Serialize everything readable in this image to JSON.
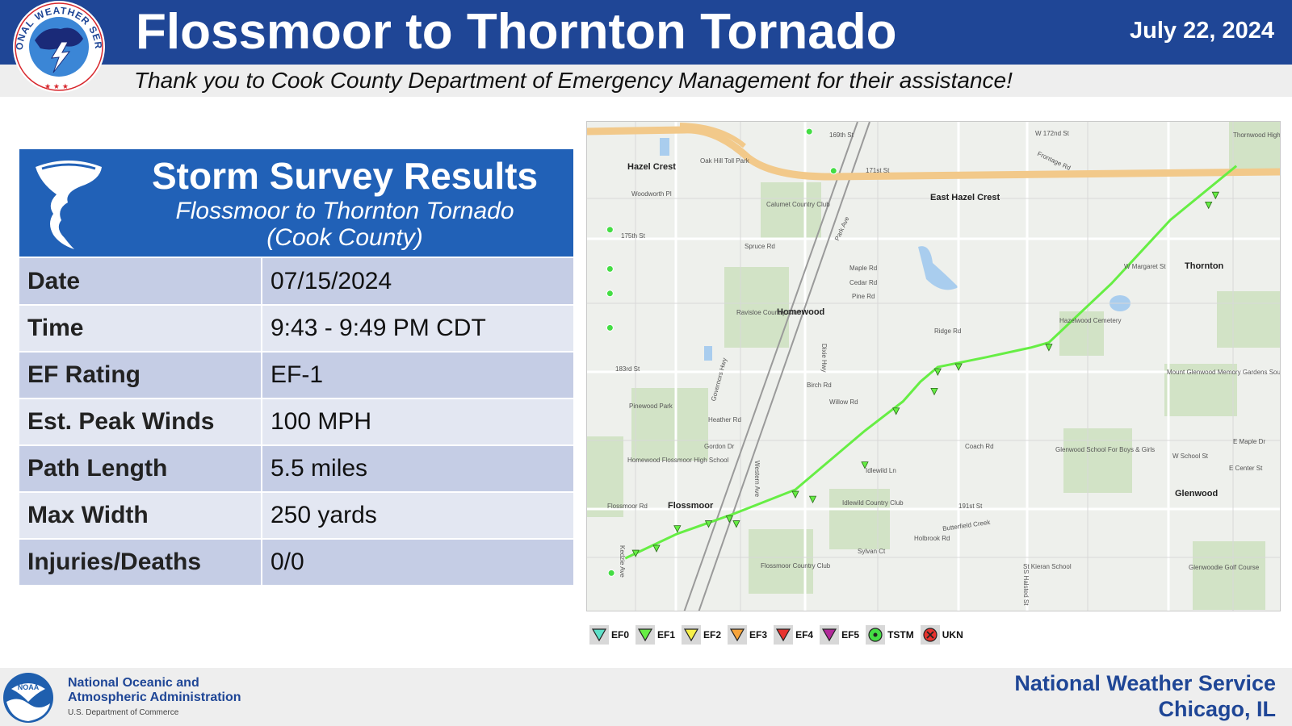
{
  "header": {
    "title": "Flossmoor to Thornton Tornado",
    "date": "July 22, 2024",
    "subtitle": "Thank you to Cook County Department of Emergency Management for their assistance!",
    "logo_text": "NATIONAL WEATHER SERVICE"
  },
  "survey": {
    "heading": "Storm Survey Results",
    "subheading_line1": "Flossmoor to Thornton Tornado",
    "subheading_line2": "(Cook County)",
    "rows": [
      {
        "label": "Date",
        "value": "07/15/2024"
      },
      {
        "label": "Time",
        "value": "9:43 - 9:49 PM CDT"
      },
      {
        "label": "EF Rating",
        "value": "EF-1"
      },
      {
        "label": "Est. Peak Winds",
        "value": "100 MPH"
      },
      {
        "label": "Path Length",
        "value": "5.5 miles"
      },
      {
        "label": "Max Width",
        "value": "250 yards"
      },
      {
        "label": "Injuries/Deaths",
        "value": "0/0"
      }
    ]
  },
  "map": {
    "places": [
      "Hazel Crest",
      "East Hazel Crest",
      "Homewood",
      "Thornton",
      "Flossmoor",
      "Glenwood"
    ],
    "streets": [
      "169th St",
      "171st St",
      "175th St",
      "183rd St",
      "W 172nd St",
      "Spruce Rd",
      "Maple Rd",
      "Cedar Rd",
      "Pine Rd",
      "Ridge Rd",
      "Birch Rd",
      "Willow Rd",
      "Heather Rd",
      "Gordon Dr",
      "Coach Rd",
      "Idlewild Ln",
      "Flossmoor Rd",
      "Holbrook Rd",
      "Sylvan Ct",
      "191st St",
      "W School St",
      "E Maple Dr",
      "E Center St",
      "W Margaret St",
      "Woodworth Pl",
      "S Halsted St",
      "Dixie Hwy",
      "Governors Hwy",
      "Kedzie Ave",
      "Western Ave",
      "Park Ave",
      "Frontage Rd"
    ],
    "landmarks": [
      "Calumet Country Club",
      "Ravisloe Country Club",
      "Idlewild Country Club",
      "Flossmoor Country Club",
      "Pinewood Park",
      "Homewood Flossmoor High School",
      "Hazelwood Cemetery",
      "Mount Glenwood Memory Gardens South",
      "Glenwood School For Boys & Girls",
      "St Kieran School",
      "Glenwoodie Golf Course",
      "Thornwood High School",
      "Oak Hill Toll Park",
      "Butterfield Creek"
    ],
    "track_color": "#66ee44",
    "track_points": [
      [
        0.055,
        0.89
      ],
      [
        0.13,
        0.84
      ],
      [
        0.21,
        0.8
      ],
      [
        0.3,
        0.75
      ],
      [
        0.4,
        0.63
      ],
      [
        0.455,
        0.57
      ],
      [
        0.48,
        0.53
      ],
      [
        0.505,
        0.5
      ],
      [
        0.575,
        0.48
      ],
      [
        0.64,
        0.46
      ],
      [
        0.665,
        0.45
      ],
      [
        0.755,
        0.33
      ],
      [
        0.84,
        0.2
      ],
      [
        0.935,
        0.09
      ]
    ],
    "marker_points": [
      [
        0.07,
        0.88
      ],
      [
        0.1,
        0.87
      ],
      [
        0.13,
        0.83
      ],
      [
        0.175,
        0.82
      ],
      [
        0.205,
        0.81
      ],
      [
        0.215,
        0.82
      ],
      [
        0.3,
        0.76
      ],
      [
        0.325,
        0.77
      ],
      [
        0.4,
        0.7
      ],
      [
        0.445,
        0.59
      ],
      [
        0.5,
        0.55
      ],
      [
        0.505,
        0.51
      ],
      [
        0.535,
        0.5
      ],
      [
        0.665,
        0.46
      ],
      [
        0.895,
        0.17
      ],
      [
        0.905,
        0.15
      ]
    ],
    "tstm_points": [
      [
        0.033,
        0.22
      ],
      [
        0.033,
        0.3
      ],
      [
        0.033,
        0.35
      ],
      [
        0.033,
        0.42
      ],
      [
        0.035,
        0.92
      ],
      [
        0.32,
        0.02
      ],
      [
        0.355,
        0.1
      ]
    ]
  },
  "legend": [
    {
      "label": "EF0",
      "color": "#5ee0c8"
    },
    {
      "label": "EF1",
      "color": "#66ee44"
    },
    {
      "label": "EF2",
      "color": "#f7f04a"
    },
    {
      "label": "EF3",
      "color": "#f7a43a"
    },
    {
      "label": "EF4",
      "color": "#e8322e"
    },
    {
      "label": "EF5",
      "color": "#b22a9a"
    },
    {
      "label": "TSTM",
      "color": "#44dd44"
    },
    {
      "label": "UKN",
      "color": "#e8322e"
    }
  ],
  "footer": {
    "noaa_abbr": "NOAA",
    "noaa_line1": "National Oceanic and",
    "noaa_line2": "Atmospheric Administration",
    "noaa_line3": "U.S. Department of Commerce",
    "nws_line1": "National Weather Service",
    "nws_line2": "Chicago, IL"
  }
}
